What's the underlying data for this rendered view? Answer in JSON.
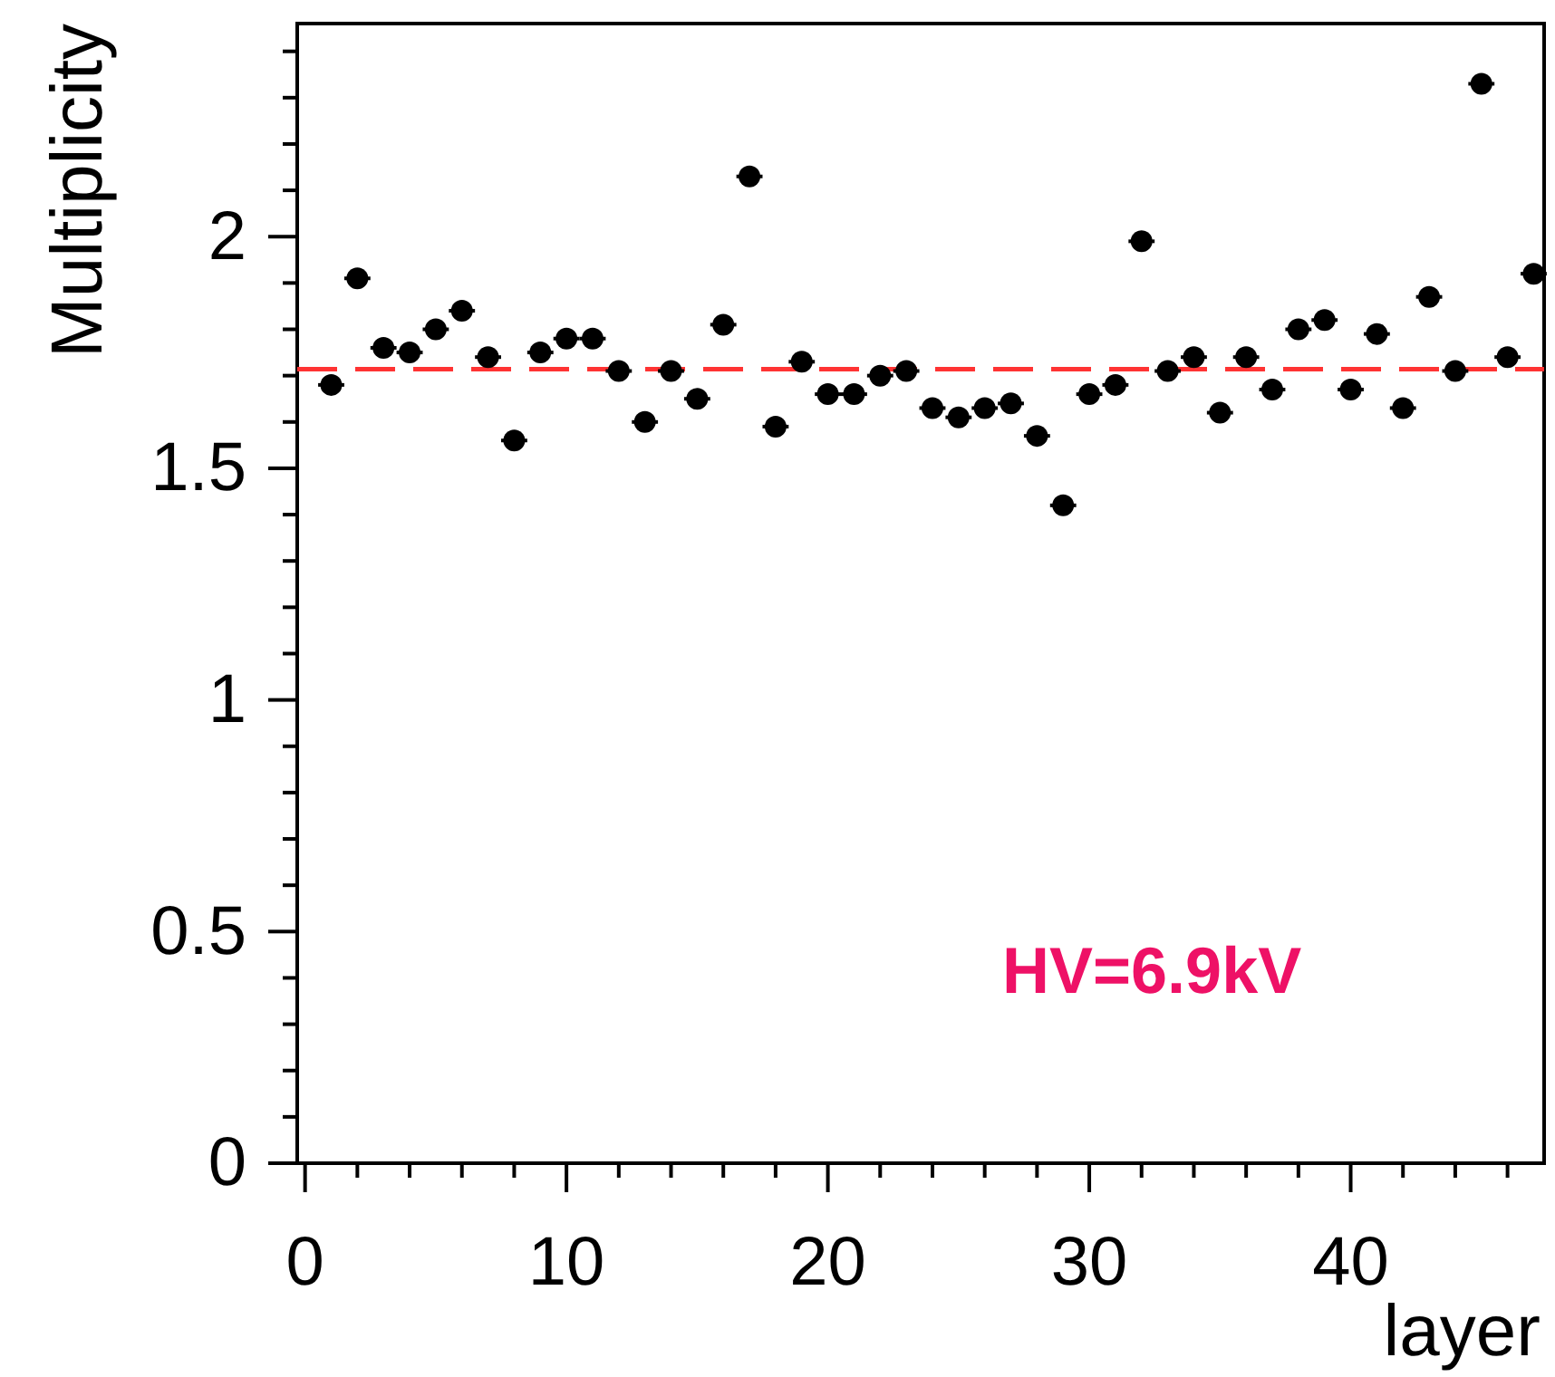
{
  "chart_data": {
    "type": "scatter",
    "xlabel": "layer",
    "ylabel": "Multiplicity",
    "x": [
      1,
      2,
      3,
      4,
      5,
      6,
      7,
      8,
      9,
      10,
      11,
      12,
      13,
      14,
      15,
      16,
      17,
      18,
      19,
      20,
      21,
      22,
      23,
      24,
      25,
      26,
      27,
      28,
      29,
      30,
      31,
      32,
      33,
      34,
      35,
      36,
      37,
      38,
      39,
      40,
      41,
      42,
      43,
      44,
      45,
      46,
      47
    ],
    "series": [
      {
        "color": "#000000",
        "values": [
          1.68,
          1.91,
          1.76,
          1.75,
          1.8,
          1.84,
          1.74,
          1.56,
          1.75,
          1.78,
          1.78,
          1.71,
          1.6,
          1.71,
          1.65,
          1.81,
          2.13,
          1.59,
          1.73,
          1.66,
          1.66,
          1.7,
          1.71,
          1.63,
          1.61,
          1.63,
          1.64,
          1.57,
          1.42,
          1.66,
          1.68,
          1.99,
          1.71,
          1.74,
          1.62,
          1.74,
          1.67,
          1.8,
          1.82,
          1.67,
          1.79,
          1.63,
          1.87,
          1.71,
          2.33,
          1.74,
          1.92
        ],
        "xerrors": [
          0.5,
          0.5,
          0.5,
          0.5,
          0.5,
          0.5,
          0.5,
          0.5,
          0.5,
          0.5,
          0.5,
          0.5,
          0.5,
          0.5,
          0.5,
          0.5,
          0.5,
          0.5,
          0.5,
          0.5,
          0.5,
          0.5,
          0.5,
          0.5,
          0.5,
          0.5,
          0.5,
          0.5,
          0.5,
          0.5,
          0.5,
          0.5,
          0.5,
          0.5,
          0.5,
          0.5,
          0.5,
          0.5,
          0.5,
          0.5,
          0.5,
          0.5,
          0.5,
          0.5,
          0.5,
          0.5,
          0.5
        ]
      }
    ],
    "marker": "circle",
    "xlim": [
      -0.3,
      47.4
    ],
    "ylim": [
      0,
      2.46
    ],
    "xticks": [
      0,
      {
        "value": 2,
        "label": null
      },
      {
        "value": 4,
        "label": null
      },
      {
        "value": 6,
        "label": null
      },
      {
        "value": 8,
        "label": null
      },
      10,
      {
        "value": 12,
        "label": null
      },
      {
        "value": 14,
        "label": null
      },
      {
        "value": 16,
        "label": null
      },
      {
        "value": 18,
        "label": null
      },
      20,
      {
        "value": 22,
        "label": null
      },
      {
        "value": 24,
        "label": null
      },
      {
        "value": 26,
        "label": null
      },
      {
        "value": 28,
        "label": null
      },
      30,
      {
        "value": 32,
        "label": null
      },
      {
        "value": 34,
        "label": null
      },
      {
        "value": 36,
        "label": null
      },
      {
        "value": 38,
        "label": null
      },
      40,
      {
        "value": 42,
        "label": null
      },
      {
        "value": 44,
        "label": null
      },
      {
        "value": 46,
        "label": null
      }
    ],
    "yticks": [
      0,
      {
        "value": 0.1,
        "label": null
      },
      {
        "value": 0.2,
        "label": null
      },
      {
        "value": 0.3,
        "label": null
      },
      {
        "value": 0.4,
        "label": null
      },
      0.5,
      {
        "value": 0.6,
        "label": null
      },
      {
        "value": 0.7,
        "label": null
      },
      {
        "value": 0.8,
        "label": null
      },
      {
        "value": 0.9,
        "label": null
      },
      1,
      {
        "value": 1.1,
        "label": null
      },
      {
        "value": 1.2,
        "label": null
      },
      {
        "value": 1.3,
        "label": null
      },
      {
        "value": 1.4,
        "label": null
      },
      1.5,
      {
        "value": 1.6,
        "label": null
      },
      {
        "value": 1.7,
        "label": null
      },
      {
        "value": 1.8,
        "label": null
      },
      {
        "value": 1.9,
        "label": null
      },
      2,
      {
        "value": 2.1,
        "label": null
      },
      {
        "value": 2.2,
        "label": null
      },
      {
        "value": 2.3,
        "label": null
      },
      {
        "value": 2.4,
        "label": null
      }
    ],
    "ref_lines": [
      {
        "axis": "y",
        "value": 1.714,
        "color": "#ff3333",
        "line_style": "dashed"
      }
    ],
    "annotations": [
      "HV=6.9kV"
    ],
    "grid": false
  }
}
